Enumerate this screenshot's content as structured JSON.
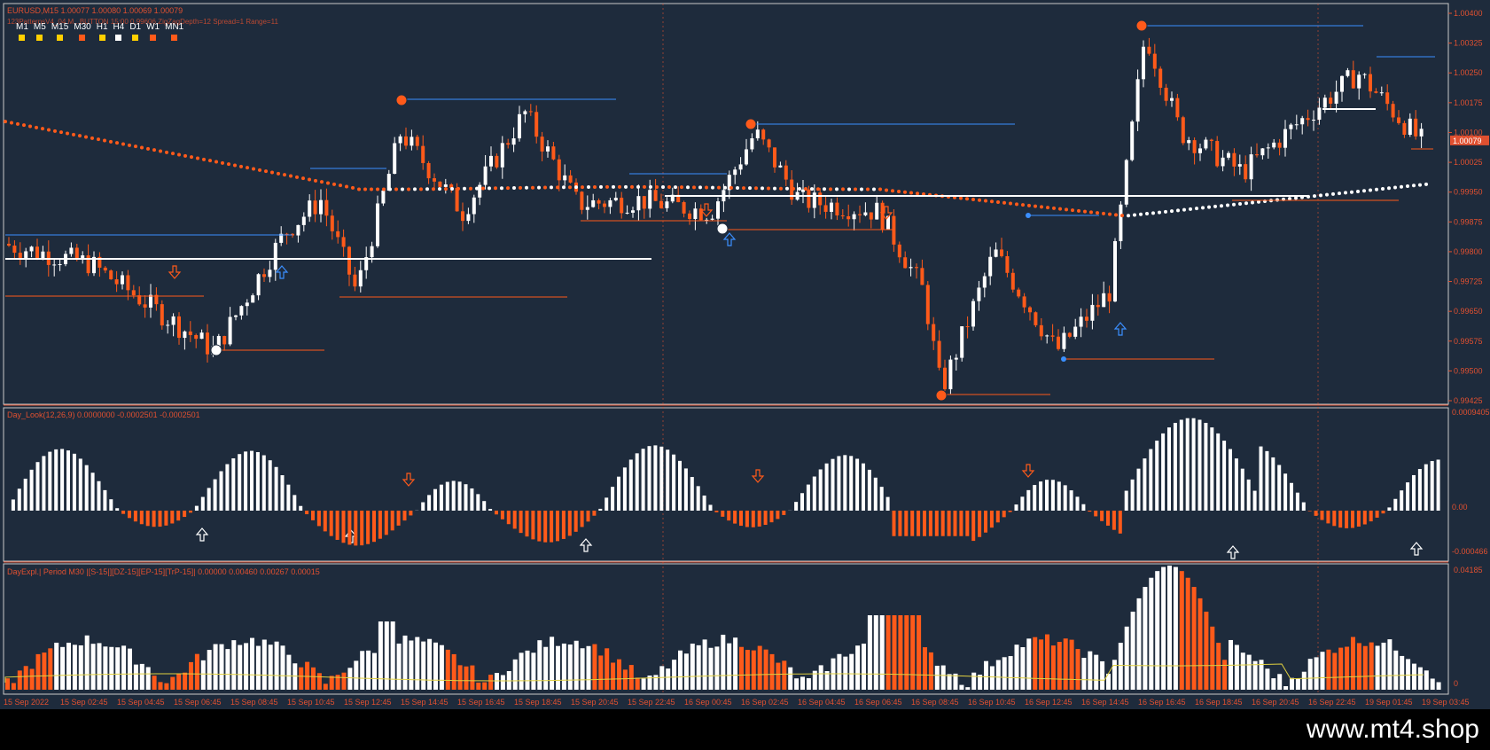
{
  "header": {
    "symbol_line": "EURUSD,M15  1.00077 1.00080 1.00069 1.00079",
    "indicator_line": "123PatternsV4_04 M...BUTTON 15:00 0.99606 ZigZagDepth=12  Spread=1  Range=11"
  },
  "timeframes": [
    {
      "label": "M1",
      "color": "#ffd000"
    },
    {
      "label": "M5",
      "color": "#ffd000"
    },
    {
      "label": "M15",
      "color": "#ffd000"
    },
    {
      "label": "M30",
      "color": "#ff5a1a"
    },
    {
      "label": "H1",
      "color": "#ffd000"
    },
    {
      "label": "H4",
      "color": "#ffffff"
    },
    {
      "label": "D1",
      "color": "#ffd000"
    },
    {
      "label": "W1",
      "color": "#ff5a1a"
    },
    {
      "label": "MN1",
      "color": "#ff5a1a"
    }
  ],
  "main_axis": {
    "ticks": [
      "1.00400",
      "1.00325",
      "1.00250",
      "1.00175",
      "1.00100",
      "1.00025",
      "0.99950",
      "0.99875",
      "0.99800",
      "0.99725",
      "0.99650",
      "0.99575",
      "0.99500",
      "0.99425"
    ],
    "current_price": "1.00079"
  },
  "panel1": {
    "title": "Day_Look(12,26,9) 0.0000000 -0.0002501 -0.0002501",
    "ticks": [
      "0.0009405",
      "0.00",
      "-0.000466"
    ]
  },
  "panel2": {
    "title": "DayExpl.| Period M30 |[S-15|][DZ-15][EP-15][TrP-15]| 0.00000 0.00460 0.00267 0.00015",
    "ticks": [
      "0.04185",
      "0"
    ]
  },
  "time_axis": [
    "15 Sep 2022",
    "15 Sep 02:45",
    "15 Sep 04:45",
    "15 Sep 06:45",
    "15 Sep 08:45",
    "15 Sep 10:45",
    "15 Sep 12:45",
    "15 Sep 14:45",
    "15 Sep 16:45",
    "15 Sep 18:45",
    "15 Sep 20:45",
    "15 Sep 22:45",
    "16 Sep 00:45",
    "16 Sep 02:45",
    "16 Sep 04:45",
    "16 Sep 06:45",
    "16 Sep 08:45",
    "16 Sep 10:45",
    "16 Sep 12:45",
    "16 Sep 14:45",
    "16 Sep 16:45",
    "16 Sep 18:45",
    "16 Sep 20:45",
    "16 Sep 22:45",
    "19 Sep 01:45",
    "19 Sep 03:45"
  ],
  "watermark": "www.mt4.shop",
  "colors": {
    "bull": "#ffffff",
    "bear": "#ff5a1a",
    "background": "#1e2b3c",
    "grid": "#e05030",
    "blue": "#3b8fff"
  }
}
